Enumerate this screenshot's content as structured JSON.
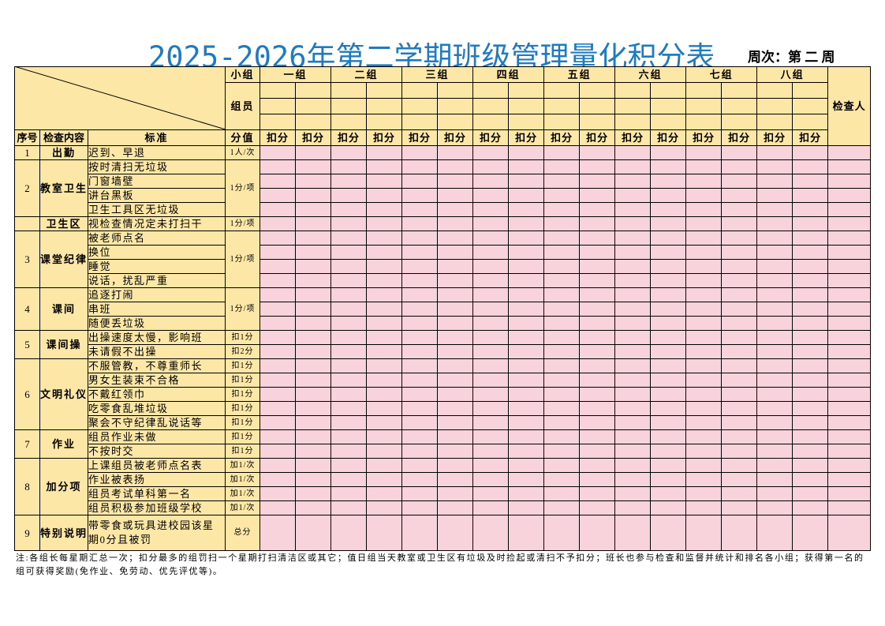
{
  "header": {
    "title": "2025-2026年第二学期班级管理量化积分表",
    "week_label": "周次：",
    "week": "第 二 周"
  },
  "table": {
    "group_label": "小组",
    "member_label": "组员",
    "score_label": "分值",
    "deduct_label": "扣分",
    "checker_label": "检查人",
    "no_label": "序号",
    "item_label": "检查内容",
    "standard_label": "标准",
    "groups": [
      "一组",
      "二组",
      "三组",
      "四组",
      "五组",
      "六组",
      "七组",
      "八组"
    ],
    "sections": [
      {
        "no": "1",
        "item": "出勤",
        "rows": [
          {
            "standard": "迟到、早退",
            "score": "1人/次"
          }
        ]
      },
      {
        "no": "2",
        "item": "教室卫生",
        "score": "1分/项",
        "rows": [
          {
            "standard": "按时清扫无垃圾"
          },
          {
            "standard": "门窗墙壁"
          },
          {
            "standard": "讲台黑板"
          },
          {
            "standard": "卫生工具区无垃圾"
          }
        ]
      },
      {
        "item": "卫生区",
        "rows": [
          {
            "standard": "视检查情况定未打扫干",
            "score": "1分/项"
          }
        ]
      },
      {
        "no": "3",
        "item": "课堂纪律",
        "score": "1分/项",
        "rows": [
          {
            "standard": "被老师点名"
          },
          {
            "standard": "换位"
          },
          {
            "standard": "睡觉"
          },
          {
            "standard": "说话，扰乱严重"
          }
        ]
      },
      {
        "no": "4",
        "item": "课间",
        "score": "1分/项",
        "rows": [
          {
            "standard": "追逐打闹"
          },
          {
            "standard": "串班"
          },
          {
            "standard": "随便丢垃圾"
          }
        ]
      },
      {
        "no": "5",
        "item": "课间操",
        "rows": [
          {
            "standard": "出操速度太慢，影响班",
            "score": "扣1分"
          },
          {
            "standard": "未请假不出操",
            "score": "扣2分"
          }
        ]
      },
      {
        "no": "6",
        "item": "文明礼仪",
        "rows": [
          {
            "standard": "不服管教，不尊重师长",
            "score": "扣1分"
          },
          {
            "standard": "男女生装束不合格",
            "score": "扣1分"
          },
          {
            "standard": "不戴红领巾",
            "score": "扣1分"
          },
          {
            "standard": "吃零食乱堆垃圾",
            "score": "扣1分"
          },
          {
            "standard": "聚会不守纪律乱说话等",
            "score": "扣1分"
          }
        ]
      },
      {
        "no": "7",
        "item": "作业",
        "rows": [
          {
            "standard": "组员作业未做",
            "score": "扣1分"
          },
          {
            "standard": "不按时交",
            "score": "扣1分"
          }
        ]
      },
      {
        "no": "8",
        "item": "加分项",
        "rows": [
          {
            "standard": "上课组员被老师点名表",
            "score": "加1/次"
          },
          {
            "standard": "作业被表扬",
            "score": "加1/次"
          },
          {
            "standard": "组员考试单科第一名",
            "score": "加1/次"
          },
          {
            "standard": "组员积极参加班级学校",
            "score": "加1/次"
          }
        ]
      },
      {
        "no": "9",
        "item": "特别说明",
        "tall": true,
        "rows": [
          {
            "standard": "带零食或玩具进校园该星期0分且被罚",
            "score": "总分"
          }
        ]
      }
    ]
  },
  "note": "注:各组长每星期汇总一次；扣分最多的组罚扫一个星期打扫清洁区或其它；值日组当天教室或卫生区有垃圾及时捡起或清扫不予扣分；班长也参与检查和监督并统计和排名各小组；获得第一名的组可获得奖励(免作业、免劳动、优先评优等)。"
}
